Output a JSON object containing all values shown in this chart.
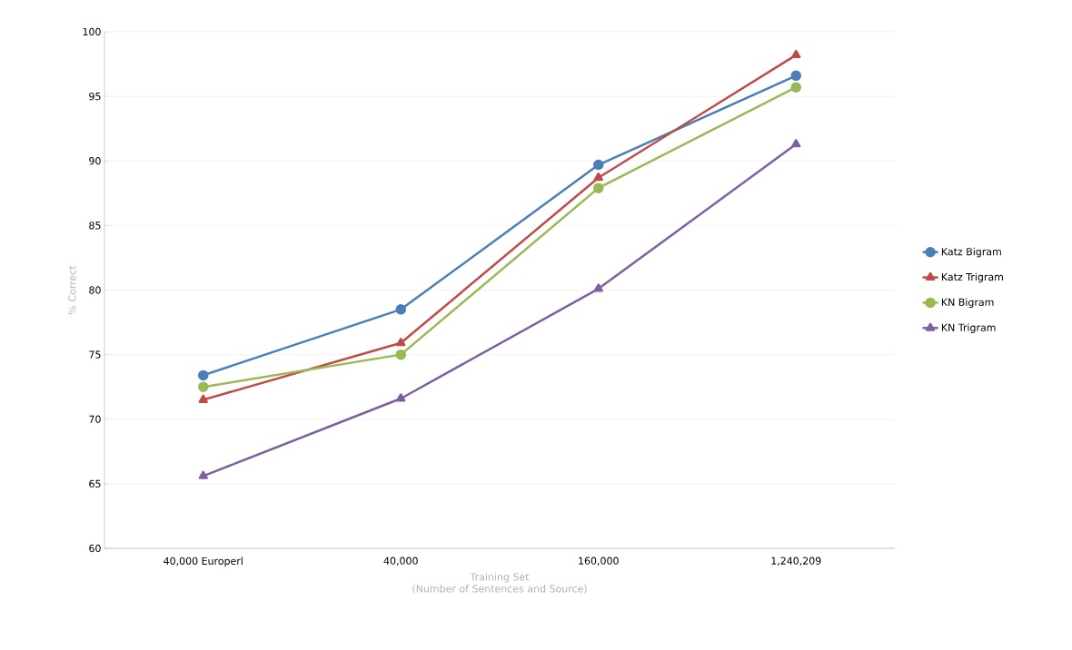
{
  "chart_data": {
    "type": "line",
    "xlabel": "Training Set\n(Number of Sentences and Source)",
    "ylabel": "% Correct",
    "categories": [
      "40,000 Europerl",
      "40,000",
      "160,000",
      "1,240,209"
    ],
    "series": [
      {
        "name": "Katz Bigram",
        "color": "#4a7ebb",
        "marker": "circle",
        "values": [
          73.4,
          78.5,
          89.7,
          96.6
        ]
      },
      {
        "name": "Katz Trigram",
        "color": "#be4b48",
        "marker": "triangle",
        "values": [
          71.5,
          75.9,
          88.7,
          98.2
        ]
      },
      {
        "name": "KN Bigram",
        "color": "#98b954",
        "marker": "circle",
        "values": [
          72.5,
          75.0,
          87.9,
          95.7
        ]
      },
      {
        "name": "KN Trigram",
        "color": "#7d60a0",
        "marker": "triangle",
        "values": [
          65.6,
          71.6,
          80.1,
          91.3
        ]
      }
    ],
    "ylim": [
      60,
      100
    ],
    "yticks": [
      60,
      65,
      70,
      75,
      80,
      85,
      90,
      95,
      100
    ],
    "grid": "y",
    "legend": "right"
  }
}
